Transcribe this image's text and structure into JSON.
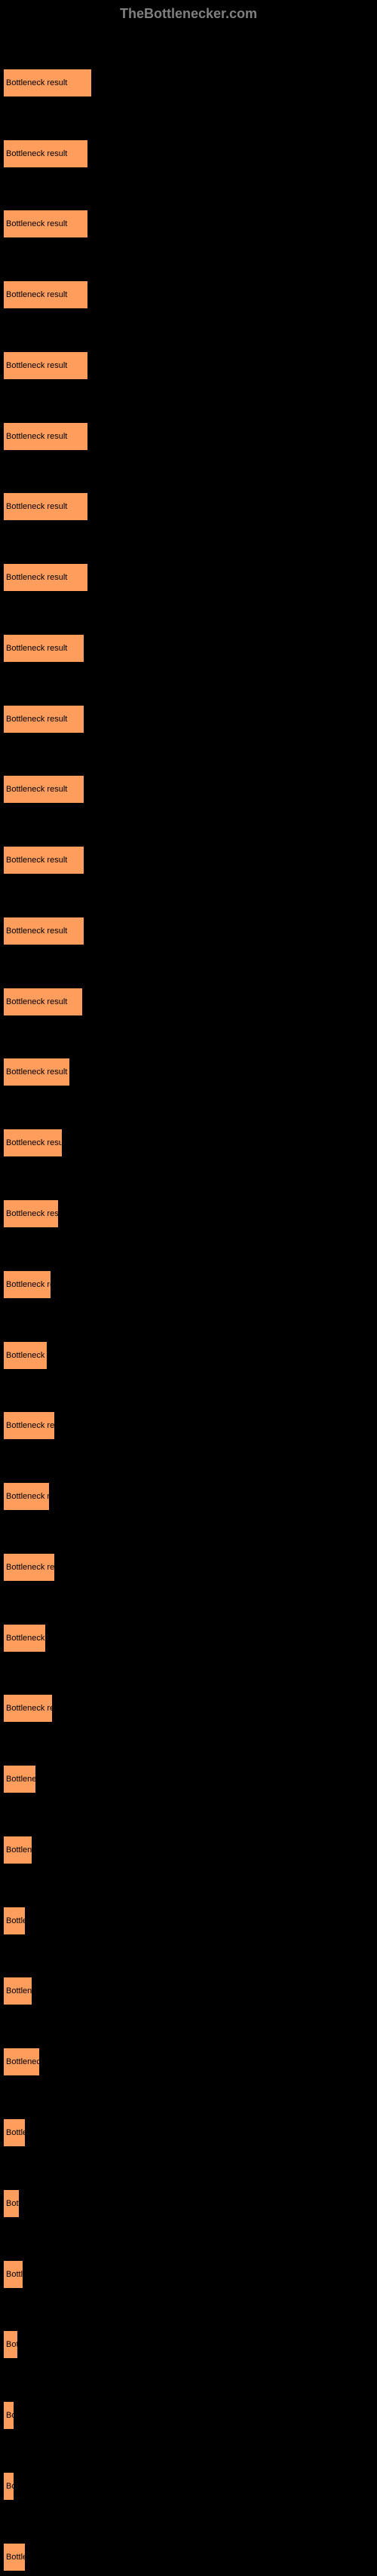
{
  "header": {
    "logo_text": "TheBottlenecker.com"
  },
  "chart": {
    "type": "bar",
    "bar_color": "#ff9d5c",
    "bar_border_color": "#000000",
    "background_color": "#000000",
    "text_color": "#000000",
    "label_color": "#808080",
    "font_size": 11,
    "max_width_pct": 24,
    "bars": [
      {
        "label": "Bottleneck result",
        "width_pct": 24.0
      },
      {
        "label": "Bottleneck result",
        "width_pct": 23.0
      },
      {
        "label": "Bottleneck result",
        "width_pct": 23.0
      },
      {
        "label": "Bottleneck result",
        "width_pct": 23.0
      },
      {
        "label": "Bottleneck result",
        "width_pct": 23.0
      },
      {
        "label": "Bottleneck result",
        "width_pct": 23.0
      },
      {
        "label": "Bottleneck result",
        "width_pct": 23.0
      },
      {
        "label": "Bottleneck result",
        "width_pct": 23.0
      },
      {
        "label": "Bottleneck result",
        "width_pct": 22.0
      },
      {
        "label": "Bottleneck result",
        "width_pct": 22.0
      },
      {
        "label": "Bottleneck result",
        "width_pct": 22.0
      },
      {
        "label": "Bottleneck result",
        "width_pct": 22.0
      },
      {
        "label": "Bottleneck result",
        "width_pct": 22.0
      },
      {
        "label": "Bottleneck result",
        "width_pct": 21.5
      },
      {
        "label": "Bottleneck result",
        "width_pct": 18.0
      },
      {
        "label": "Bottleneck result",
        "width_pct": 16.0
      },
      {
        "label": "Bottleneck result",
        "width_pct": 15.0
      },
      {
        "label": "Bottleneck result",
        "width_pct": 13.0
      },
      {
        "label": "Bottleneck res",
        "width_pct": 12.0
      },
      {
        "label": "Bottleneck result",
        "width_pct": 14.0
      },
      {
        "label": "Bottleneck resul",
        "width_pct": 12.5
      },
      {
        "label": "Bottleneck result",
        "width_pct": 14.0
      },
      {
        "label": "Bottleneck res",
        "width_pct": 11.5
      },
      {
        "label": "Bottleneck result",
        "width_pct": 13.5
      },
      {
        "label": "Bottlenec",
        "width_pct": 9.0
      },
      {
        "label": "Bottlene",
        "width_pct": 8.0
      },
      {
        "label": "Bottle",
        "width_pct": 6.0
      },
      {
        "label": "Bottlene",
        "width_pct": 8.0
      },
      {
        "label": "Bottleneck",
        "width_pct": 10.0
      },
      {
        "label": "Bottle",
        "width_pct": 6.0
      },
      {
        "label": "Bott",
        "width_pct": 4.5
      },
      {
        "label": "Bottl",
        "width_pct": 5.5
      },
      {
        "label": "Bot",
        "width_pct": 4.0
      },
      {
        "label": "Bo",
        "width_pct": 3.0
      },
      {
        "label": "Bo",
        "width_pct": 3.0
      },
      {
        "label": "Bottle",
        "width_pct": 6.0
      }
    ]
  }
}
